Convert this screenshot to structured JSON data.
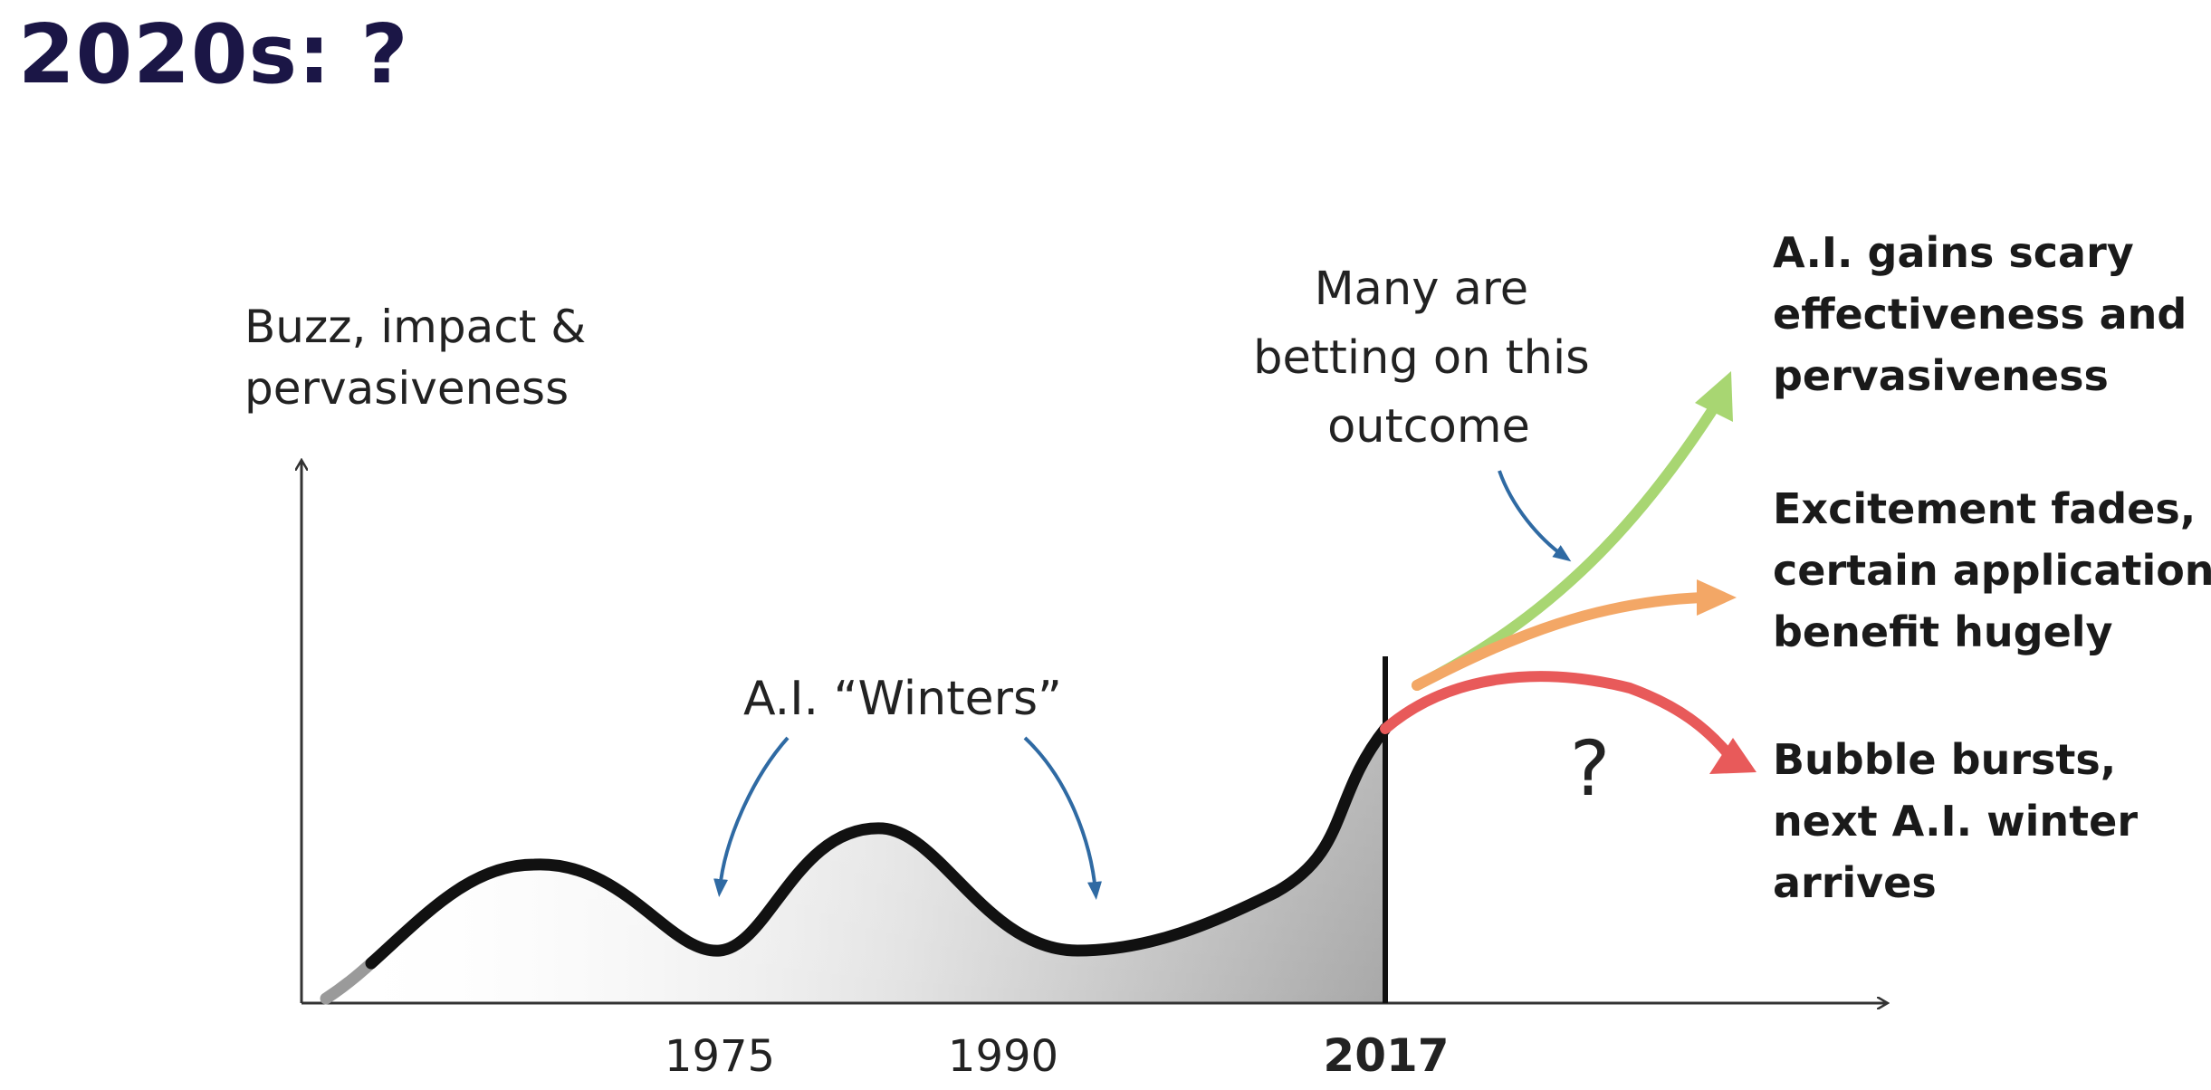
{
  "title": "2020s: ?",
  "diagram": {
    "y_axis_label": [
      "Buzz, impact &",
      "pervasiveness"
    ],
    "winters_label": "A.I. “Winters”",
    "betting_label": [
      "Many are",
      "betting on this",
      "outcome"
    ],
    "question_mark": "?",
    "x_ticks": [
      {
        "label": "1975",
        "bold": false
      },
      {
        "label": "1990",
        "bold": false
      },
      {
        "label": "2017",
        "bold": true
      }
    ],
    "outcomes": [
      {
        "lines": [
          "A.I. gains scary",
          "effectiveness and",
          "pervasiveness"
        ],
        "color": "#a8d672"
      },
      {
        "lines": [
          "Excitement fades,",
          "certain applications",
          "benefit hugely"
        ],
        "color": "#f3a766"
      },
      {
        "lines": [
          "Bubble bursts,",
          "next A.I. winter",
          "arrives"
        ],
        "color": "#e85a5a"
      }
    ],
    "colors": {
      "curve": "#111111",
      "axis": "#333333",
      "annotation_arrow": "#2f6aa3",
      "title": "#1b1646"
    }
  }
}
